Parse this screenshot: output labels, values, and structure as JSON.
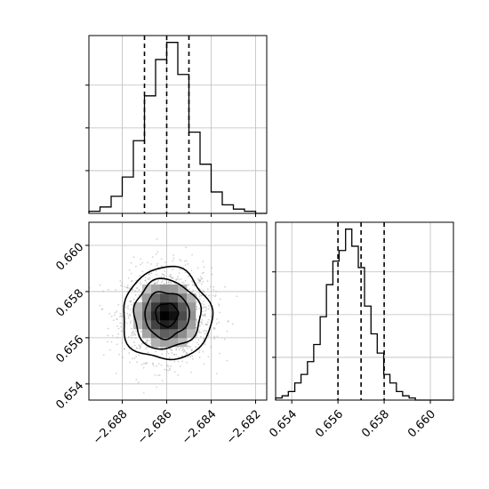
{
  "chart_data": {
    "type": "corner",
    "parameters": [
      {
        "range": [
          -2.6895,
          -2.6815
        ],
        "ticks": [
          -2.688,
          -2.686,
          -2.684,
          -2.682
        ],
        "tick_labels": [
          "−2.688",
          "−2.686",
          "−2.684",
          "−2.682"
        ],
        "quantiles": [
          -2.687,
          -2.686,
          -2.685
        ],
        "histogram": {
          "bins": [
            -2.6895,
            -2.689,
            -2.6885,
            -2.688,
            -2.6875,
            -2.687,
            -2.6865,
            -2.686,
            -2.6855,
            -2.685,
            -2.6845,
            -2.684,
            -2.6835,
            -2.683,
            -2.6825,
            -2.682,
            -2.6815
          ],
          "counts": [
            1,
            3,
            8,
            17,
            34,
            55,
            72,
            80,
            65,
            38,
            23,
            10,
            4,
            2,
            1,
            0
          ]
        }
      },
      {
        "range": [
          0.6533,
          0.661
        ],
        "ticks": [
          0.654,
          0.656,
          0.658,
          0.66
        ],
        "tick_labels": [
          "0.654",
          "0.656",
          "0.658",
          "0.660"
        ],
        "quantiles": [
          0.656,
          0.657,
          0.658
        ],
        "histogram": {
          "bins": [
            0.6533,
            0.65358,
            0.65385,
            0.65413,
            0.6544,
            0.65468,
            0.65495,
            0.65523,
            0.6555,
            0.65578,
            0.65605,
            0.65633,
            0.6566,
            0.65688,
            0.65715,
            0.65743,
            0.6577,
            0.65798,
            0.65825,
            0.65853,
            0.6588,
            0.65908,
            0.65935,
            0.65963,
            0.6599,
            0.66018,
            0.661
          ],
          "counts": [
            1,
            2,
            4,
            8,
            12,
            18,
            26,
            39,
            54,
            65,
            70,
            80,
            72,
            62,
            44,
            31,
            22,
            12,
            8,
            4,
            2,
            1,
            0,
            0,
            0,
            0
          ]
        }
      }
    ],
    "joint": {
      "center": [
        -2.686,
        0.657
      ],
      "sigma": [
        0.001,
        0.001
      ],
      "contour_levels_sigma": [
        0.5,
        1.0,
        1.5,
        2.0
      ]
    },
    "grid": true,
    "xlabel": "",
    "ylabel": ""
  }
}
